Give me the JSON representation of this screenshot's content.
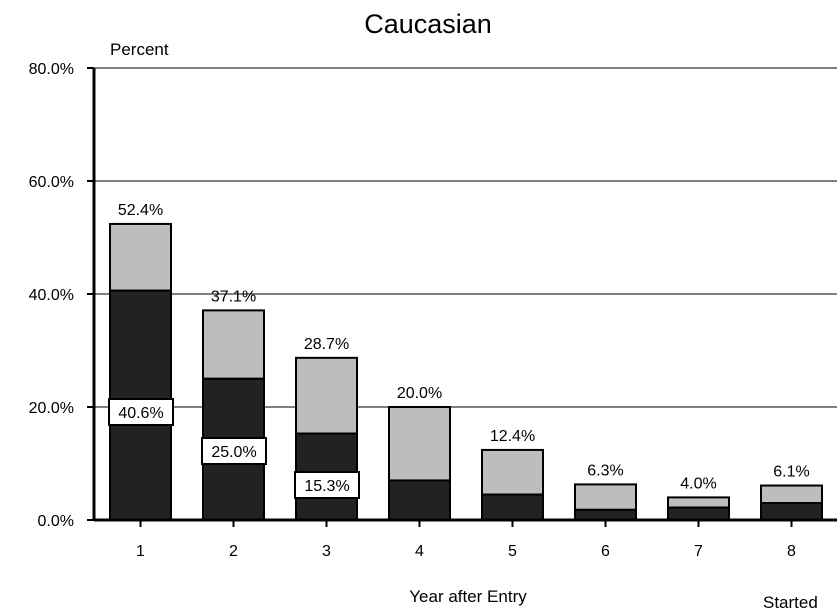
{
  "chart_data": {
    "type": "bar",
    "title": "Caucasian",
    "ylabel": "Percent",
    "xlabel": "Year after Entry",
    "ylim": [
      0,
      80
    ],
    "y_ticks": [
      "0.0%",
      "20.0%",
      "40.0%",
      "60.0%",
      "80.0%"
    ],
    "y_tick_values": [
      0,
      20,
      40,
      60,
      80
    ],
    "categories": [
      "1",
      "2",
      "3",
      "4",
      "5",
      "6",
      "7",
      "8"
    ],
    "stacked": true,
    "series": [
      {
        "values": [
          40.6,
          25.0,
          15.3,
          7.0,
          4.5,
          1.8,
          2.2,
          3.0
        ],
        "color": "#222222"
      },
      {
        "values": [
          11.8,
          12.1,
          13.4,
          13.0,
          7.9,
          4.5,
          1.8,
          3.1
        ],
        "color": "#bdbdbd"
      }
    ],
    "total_labels": [
      "52.4%",
      "37.1%",
      "28.7%",
      "20.0%",
      "12.4%",
      "6.3%",
      "4.0%",
      "6.1%"
    ],
    "totals": [
      52.4,
      37.1,
      28.7,
      20.0,
      12.4,
      6.3,
      4.0,
      6.1
    ],
    "inner_labels": [
      "40.6%",
      "25.0%",
      "15.3%"
    ],
    "legend_fragment": "Started",
    "grid": true
  }
}
